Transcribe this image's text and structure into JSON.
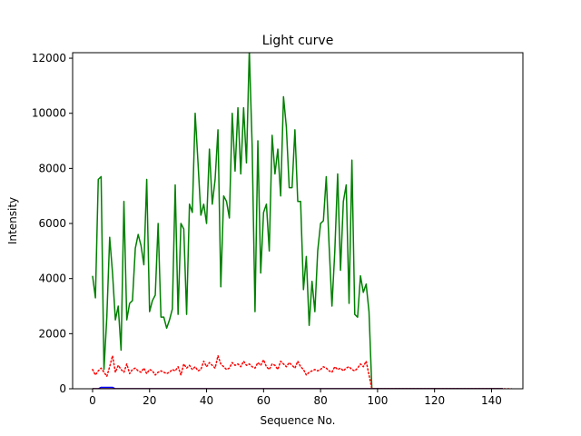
{
  "chart_data": {
    "type": "line",
    "title": "Light curve",
    "xlabel": "Sequence No.",
    "ylabel": "Intensity",
    "xlim": [
      -7,
      151
    ],
    "ylim": [
      0,
      12200
    ],
    "x_ticks": [
      0,
      20,
      40,
      60,
      80,
      100,
      120,
      140
    ],
    "y_ticks": [
      0,
      2000,
      4000,
      6000,
      8000,
      10000,
      12000
    ],
    "grid": false,
    "series": [
      {
        "color": "#008000",
        "style": "solid",
        "x_start": 0,
        "values": [
          4100,
          3300,
          7600,
          7700,
          700,
          2600,
          5500,
          4200,
          2500,
          3000,
          1400,
          6800,
          2500,
          3100,
          3200,
          5100,
          5600,
          5200,
          4500,
          7600,
          2800,
          3200,
          3400,
          6000,
          2600,
          2600,
          2200,
          2500,
          2900,
          7400,
          2700,
          6000,
          5800,
          2700,
          6700,
          6400,
          10000,
          8200,
          6300,
          6700,
          6000,
          8700,
          6700,
          7600,
          9400,
          3700,
          7000,
          6800,
          6200,
          10000,
          7900,
          10200,
          7800,
          10200,
          8200,
          12300,
          8800,
          2800,
          9000,
          4200,
          6400,
          6700,
          5000,
          9200,
          7800,
          8700,
          7000,
          10600,
          9500,
          7300,
          7300,
          9400,
          6800,
          6800,
          3600,
          4800,
          2300,
          3900,
          2800,
          5000,
          6000,
          6100,
          7700,
          5200,
          3000,
          5000,
          7800,
          4300,
          6800,
          7400,
          3100,
          8300,
          2700,
          2600,
          4100,
          3500,
          3800,
          2800,
          0,
          0,
          0,
          0,
          0,
          0,
          0,
          0,
          0,
          0,
          0,
          0,
          0,
          0,
          0,
          0,
          0,
          0,
          0,
          0,
          0,
          0,
          0,
          0,
          0,
          0,
          0,
          0,
          0,
          0,
          0,
          0,
          0,
          0,
          0,
          0,
          0,
          0,
          0,
          0,
          0,
          0,
          0,
          0,
          0,
          0,
          0
        ]
      },
      {
        "color": "#ff0000",
        "style": "dotted",
        "x_start": 0,
        "values": [
          700,
          500,
          650,
          750,
          600,
          450,
          800,
          1200,
          600,
          850,
          700,
          600,
          900,
          550,
          700,
          750,
          650,
          600,
          750,
          550,
          700,
          650,
          500,
          600,
          650,
          600,
          550,
          600,
          700,
          650,
          800,
          500,
          900,
          750,
          850,
          700,
          800,
          650,
          700,
          1000,
          800,
          950,
          850,
          750,
          1200,
          900,
          800,
          700,
          750,
          950,
          850,
          900,
          800,
          1000,
          850,
          900,
          800,
          750,
          950,
          850,
          1050,
          800,
          700,
          900,
          850,
          700,
          1000,
          900,
          800,
          950,
          850,
          750,
          1000,
          800,
          700,
          500,
          600,
          650,
          700,
          650,
          700,
          800,
          750,
          650,
          600,
          800,
          700,
          750,
          650,
          750,
          800,
          700,
          650,
          750,
          900,
          800,
          1000,
          500,
          0,
          0,
          0,
          0,
          0,
          0,
          0,
          0,
          0,
          0,
          0,
          0,
          0,
          0,
          0,
          0,
          0,
          0,
          0,
          0,
          0,
          0,
          0,
          0,
          0,
          0,
          0,
          0,
          0,
          0,
          0,
          0,
          0,
          0,
          0,
          0,
          0,
          0,
          0,
          0,
          0,
          0,
          0,
          0,
          0,
          0,
          0,
          0,
          0,
          0
        ]
      },
      {
        "color": "#0000ff",
        "style": "solid",
        "x_start": 0,
        "values": [
          0,
          0,
          0,
          50,
          50,
          50,
          50,
          50,
          0,
          0,
          0,
          0,
          0,
          0,
          0,
          0,
          0,
          0,
          0,
          0,
          0,
          0,
          0,
          0,
          0,
          0,
          0,
          0,
          0,
          0,
          0,
          0,
          0,
          0,
          0,
          0,
          0,
          0,
          0,
          0,
          0,
          0,
          0,
          0,
          0,
          0,
          0,
          0,
          0,
          0,
          0,
          0,
          0,
          0,
          0,
          0,
          0,
          0,
          0,
          0,
          0,
          0,
          0,
          0,
          0,
          0,
          0,
          0,
          0,
          0,
          0,
          0,
          0,
          0,
          0,
          0,
          0,
          0,
          0,
          0,
          0,
          0,
          0,
          0,
          0,
          0,
          0,
          0,
          0,
          0,
          0,
          0,
          0,
          0,
          0,
          0,
          0,
          0,
          0,
          0,
          0,
          0,
          0,
          0,
          0,
          0,
          0,
          0,
          0,
          0,
          0,
          0,
          0,
          0,
          0,
          0,
          0,
          0,
          0,
          0,
          0,
          0,
          0,
          0,
          0,
          0,
          0,
          0,
          0,
          0,
          0,
          0,
          0,
          0,
          0,
          0,
          0,
          0,
          0,
          0,
          0,
          0,
          0,
          0,
          0
        ]
      },
      {
        "color": "#8b0000",
        "style": "solid",
        "x_start": 0,
        "values": [
          0,
          0,
          0,
          0,
          0,
          0,
          0,
          0,
          0,
          0,
          0,
          0,
          0,
          0,
          0,
          0,
          0,
          0,
          0,
          0,
          0,
          0,
          0,
          0,
          0,
          0,
          0,
          0,
          0,
          0,
          0,
          0,
          0,
          0,
          0,
          0,
          0,
          0,
          0,
          0,
          0,
          0,
          0,
          0,
          0,
          0,
          0,
          0,
          0,
          0,
          0,
          0,
          0,
          0,
          0,
          0,
          0,
          0,
          0,
          0,
          0,
          0,
          0,
          0,
          0,
          0,
          0,
          0,
          0,
          0,
          0,
          0,
          0,
          0,
          0,
          0,
          0,
          0,
          0,
          0,
          0,
          0,
          0,
          0,
          0,
          0,
          0,
          0,
          0,
          0,
          0,
          0,
          0,
          0,
          0,
          0,
          0,
          0,
          0,
          0,
          0,
          0,
          0,
          0,
          0,
          0,
          0,
          0,
          0,
          0,
          0,
          0,
          0,
          0,
          0,
          0,
          0,
          0,
          0,
          0,
          0,
          0,
          0,
          0,
          0,
          0,
          0,
          0,
          0,
          0,
          0,
          0,
          0,
          0,
          0,
          0,
          0,
          0,
          0,
          0,
          0,
          0,
          0,
          0,
          0
        ]
      }
    ]
  }
}
